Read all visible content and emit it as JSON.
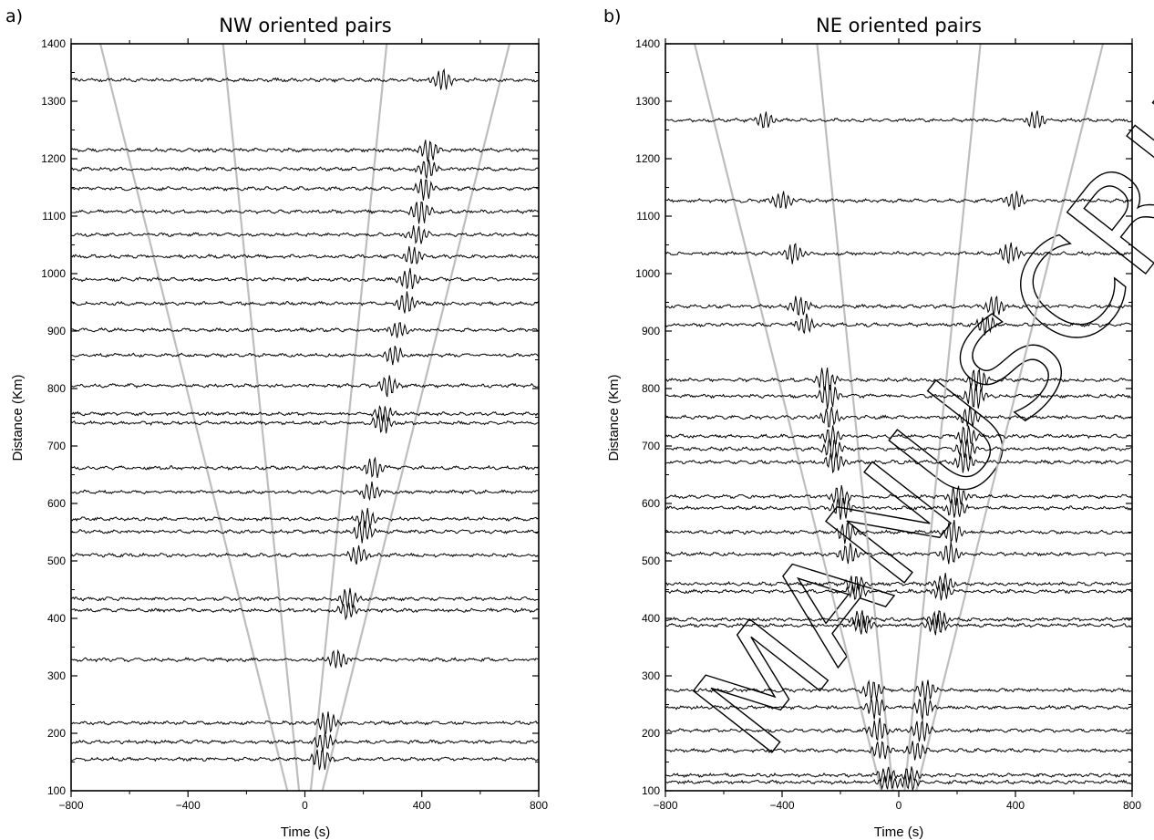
{
  "watermark": "MANUSCRIPT",
  "chart_data": [
    {
      "type": "line",
      "panel": "a)",
      "title": "NW oriented pairs",
      "xlabel": "Time (s)",
      "ylabel": "Distance (Km)",
      "xlim": [
        -800,
        800
      ],
      "ylim": [
        100,
        1400
      ],
      "xticks": [
        -800,
        -400,
        0,
        400,
        800
      ],
      "yticks": [
        100,
        200,
        300,
        400,
        500,
        600,
        700,
        800,
        900,
        1000,
        1100,
        1200,
        1300,
        1400
      ],
      "grid": false,
      "moveout_lines_x_at_100km": [
        -60,
        -20,
        20,
        60
      ],
      "moveout_lines_x_at_1400km": [
        -700,
        -280,
        280,
        700
      ],
      "traces": [
        {
          "distance": 1337,
          "arrival": 470,
          "amplitude": 12
        },
        {
          "distance": 1215,
          "arrival": 425,
          "amplitude": 13
        },
        {
          "distance": 1182,
          "arrival": 420,
          "amplitude": 11
        },
        {
          "distance": 1148,
          "arrival": 410,
          "amplitude": 12
        },
        {
          "distance": 1108,
          "arrival": 395,
          "amplitude": 14
        },
        {
          "distance": 1068,
          "arrival": 385,
          "amplitude": 10
        },
        {
          "distance": 1030,
          "arrival": 370,
          "amplitude": 11
        },
        {
          "distance": 990,
          "arrival": 355,
          "amplitude": 12
        },
        {
          "distance": 948,
          "arrival": 345,
          "amplitude": 13
        },
        {
          "distance": 902,
          "arrival": 320,
          "amplitude": 10
        },
        {
          "distance": 858,
          "arrival": 305,
          "amplitude": 11
        },
        {
          "distance": 805,
          "arrival": 285,
          "amplitude": 12
        },
        {
          "distance": 756,
          "arrival": 270,
          "amplitude": 10
        },
        {
          "distance": 740,
          "arrival": 265,
          "amplitude": 12
        },
        {
          "distance": 662,
          "arrival": 235,
          "amplitude": 12
        },
        {
          "distance": 620,
          "arrival": 225,
          "amplitude": 10
        },
        {
          "distance": 573,
          "arrival": 210,
          "amplitude": 12
        },
        {
          "distance": 551,
          "arrival": 200,
          "amplitude": 13
        },
        {
          "distance": 510,
          "arrival": 180,
          "amplitude": 11
        },
        {
          "distance": 434,
          "arrival": 150,
          "amplitude": 12
        },
        {
          "distance": 414,
          "arrival": 145,
          "amplitude": 10
        },
        {
          "distance": 328,
          "arrival": 110,
          "amplitude": 11
        },
        {
          "distance": 218,
          "arrival": 75,
          "amplitude": 14
        },
        {
          "distance": 185,
          "arrival": 65,
          "amplitude": 11
        },
        {
          "distance": 155,
          "arrival": 55,
          "amplitude": 13
        }
      ]
    },
    {
      "type": "line",
      "panel": "b)",
      "title": "NE oriented pairs",
      "xlabel": "Time (s)",
      "ylabel": "Distance (Km)",
      "xlim": [
        -800,
        800
      ],
      "ylim": [
        100,
        1400
      ],
      "xticks": [
        -800,
        -400,
        0,
        400,
        800
      ],
      "yticks": [
        100,
        200,
        300,
        400,
        500,
        600,
        700,
        800,
        900,
        1000,
        1100,
        1200,
        1300,
        1400
      ],
      "grid": false,
      "moveout_lines_x_at_100km": [
        -60,
        -20,
        20,
        60
      ],
      "moveout_lines_x_at_1400km": [
        -700,
        -280,
        280,
        700
      ],
      "traces": [
        {
          "distance": 1267,
          "arrival": -460,
          "amplitude": 10,
          "arrival2": 470
        },
        {
          "distance": 1127,
          "arrival": -400,
          "amplitude": 11,
          "arrival2": 400
        },
        {
          "distance": 1035,
          "arrival": -360,
          "amplitude": 12,
          "arrival2": 380
        },
        {
          "distance": 943,
          "arrival": -340,
          "amplitude": 12,
          "arrival2": 330
        },
        {
          "distance": 911,
          "arrival": -320,
          "amplitude": 11,
          "arrival2": 300
        },
        {
          "distance": 815,
          "arrival": -250,
          "amplitude": 14,
          "arrival2": 270
        },
        {
          "distance": 787,
          "arrival": -240,
          "amplitude": 15,
          "arrival2": 260
        },
        {
          "distance": 750,
          "arrival": -235,
          "amplitude": 12,
          "arrival2": 240
        },
        {
          "distance": 717,
          "arrival": -230,
          "amplitude": 12,
          "arrival2": 235
        },
        {
          "distance": 695,
          "arrival": -225,
          "amplitude": 13,
          "arrival2": 230
        },
        {
          "distance": 672,
          "arrival": -220,
          "amplitude": 12,
          "arrival2": 225
        },
        {
          "distance": 612,
          "arrival": -200,
          "amplitude": 12,
          "arrival2": 200
        },
        {
          "distance": 592,
          "arrival": -195,
          "amplitude": 13,
          "arrival2": 195
        },
        {
          "distance": 550,
          "arrival": -180,
          "amplitude": 13,
          "arrival2": 185
        },
        {
          "distance": 512,
          "arrival": -170,
          "amplitude": 12,
          "arrival2": 175
        },
        {
          "distance": 460,
          "arrival": -150,
          "amplitude": 11,
          "arrival2": 155
        },
        {
          "distance": 447,
          "arrival": -145,
          "amplitude": 10,
          "arrival2": 150
        },
        {
          "distance": 398,
          "arrival": -130,
          "amplitude": 11,
          "arrival2": 135
        },
        {
          "distance": 388,
          "arrival": -125,
          "amplitude": 11,
          "arrival2": 130
        },
        {
          "distance": 275,
          "arrival": -90,
          "amplitude": 12,
          "arrival2": 95
        },
        {
          "distance": 245,
          "arrival": -80,
          "amplitude": 13,
          "arrival2": 85
        },
        {
          "distance": 205,
          "arrival": -70,
          "amplitude": 13,
          "arrival2": 75
        },
        {
          "distance": 170,
          "arrival": -60,
          "amplitude": 11,
          "arrival2": 60
        },
        {
          "distance": 127,
          "arrival": -40,
          "amplitude": 9,
          "arrival2": 40
        },
        {
          "distance": 115,
          "arrival": -35,
          "amplitude": 9,
          "arrival2": 35
        }
      ]
    }
  ]
}
